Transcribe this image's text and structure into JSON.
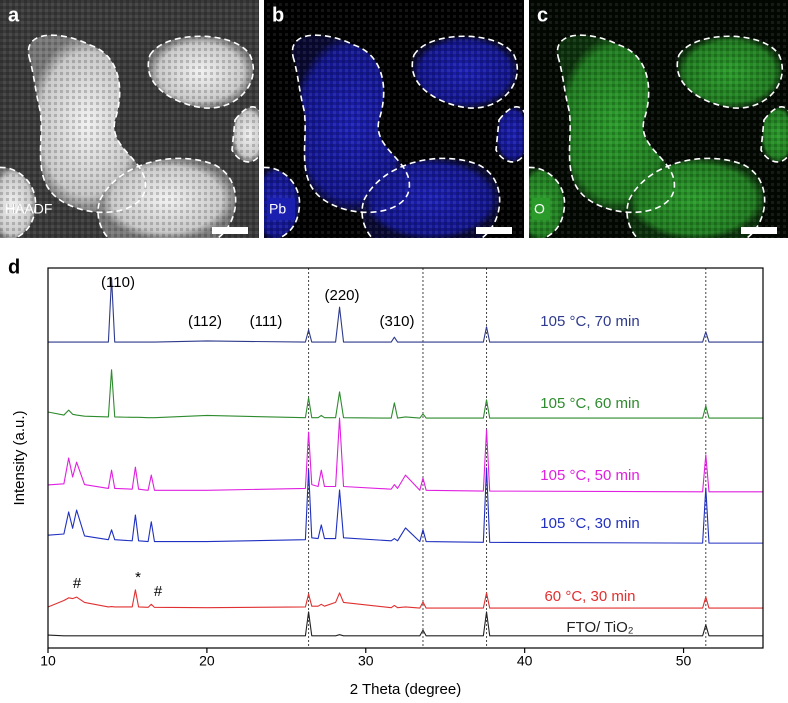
{
  "panels": [
    {
      "label": "a",
      "tag": "HAADF"
    },
    {
      "label": "b",
      "tag": "Pb"
    },
    {
      "label": "c",
      "tag": "O"
    }
  ],
  "chart_data": {
    "type": "line",
    "panel_label": "d",
    "x_label": "2 Theta (degree)",
    "y_label": "Intensity (a.u.)",
    "x": [
      10,
      11,
      11.3,
      11.55,
      11.8,
      12.3,
      13.8,
      14,
      14.2,
      15.3,
      15.5,
      15.7,
      16.3,
      16.5,
      16.7,
      20,
      26.2,
      26.4,
      26.6,
      27,
      27.2,
      27.4,
      28.1,
      28.35,
      28.6,
      31.6,
      31.8,
      32,
      32.5,
      33.4,
      33.6,
      33.8,
      37.4,
      37.6,
      37.8,
      51.2,
      51.4,
      51.6,
      55
    ],
    "xlim": [
      10,
      55
    ],
    "xticks": [
      10,
      20,
      30,
      40,
      50
    ],
    "ylim": [
      0,
      100
    ],
    "reference_lines": [
      26.4,
      33.6,
      37.6,
      51.4
    ],
    "annotations": [
      "(110)",
      "(112)",
      "(111)",
      "(220)",
      "(310)",
      "#",
      "*",
      "#"
    ],
    "series": [
      {
        "name": "105 °C, 70 min",
        "color": "#2e3a8c",
        "values": [
          80.5,
          80.5,
          80.5,
          80.5,
          80.5,
          80.5,
          80.5,
          97.4,
          80.5,
          80.5,
          80.5,
          80.5,
          80.5,
          80.5,
          80.5,
          80.8,
          80.5,
          83.7,
          80.5,
          80.5,
          80.5,
          80.5,
          80.5,
          89.7,
          80.5,
          80.5,
          81.8,
          80.5,
          80.5,
          80.5,
          80.5,
          80.5,
          80.5,
          84.5,
          80.5,
          80.5,
          83.2,
          80.5,
          80.5
        ]
      },
      {
        "name": "105 °C, 60 min",
        "color": "#2e8b2e",
        "values": [
          62.1,
          61.3,
          62.6,
          61.5,
          61.3,
          61.0,
          60.8,
          73.2,
          60.8,
          60.7,
          60.7,
          60.7,
          60.6,
          60.6,
          60.6,
          61.2,
          60.6,
          65.8,
          60.6,
          60.6,
          61.2,
          60.6,
          60.6,
          67.4,
          60.6,
          60.5,
          64.5,
          60.5,
          60.8,
          60.5,
          61.6,
          60.5,
          60.5,
          65.3,
          60.5,
          60.5,
          63.7,
          60.5,
          60.5
        ]
      },
      {
        "name": "105 °C, 50 min",
        "color": "#e020e0",
        "values": [
          42.9,
          43.2,
          50,
          45,
          48.9,
          43,
          42,
          46.8,
          42,
          41.8,
          47.6,
          41.8,
          41.5,
          45.5,
          41.5,
          41.5,
          42,
          56.8,
          43,
          42.5,
          46.8,
          42.5,
          42.5,
          60.5,
          42.5,
          41.8,
          43,
          42,
          45.5,
          41.5,
          44.7,
          41.5,
          41.3,
          57.4,
          41.3,
          41.1,
          50.8,
          41.1,
          41.1
        ]
      },
      {
        "name": "105 °C, 30 min",
        "color": "#2030c0",
        "values": [
          29.7,
          30,
          35.8,
          31.5,
          36.3,
          29.5,
          28.5,
          31.1,
          28.5,
          28.2,
          35,
          28.2,
          28,
          33.2,
          28,
          28,
          28.5,
          46.8,
          29,
          28.8,
          32.4,
          28.8,
          28.8,
          41.6,
          29,
          28.2,
          28.8,
          28.2,
          31.6,
          28,
          31.1,
          28,
          27.8,
          47.4,
          27.8,
          27.6,
          42.1,
          27.6,
          27.6
        ]
      },
      {
        "name": "60 °C, 30 min",
        "color": "#e03030",
        "values": [
          10.8,
          12.5,
          13.2,
          13.0,
          13.4,
          12,
          10.8,
          10.9,
          10.8,
          10.8,
          15.3,
          10.8,
          10.7,
          11.5,
          10.7,
          10.6,
          10.8,
          14.2,
          11,
          11,
          11.5,
          11,
          12,
          14.5,
          12,
          10.6,
          11.2,
          10.6,
          10.8,
          10.5,
          12.1,
          10.5,
          10.5,
          14.5,
          10.5,
          10.5,
          13.4,
          10.5,
          10.5
        ]
      },
      {
        "name": "FTO/ TiO₂",
        "color": "#222222",
        "values": [
          3.4,
          3.2,
          3.2,
          3.2,
          3.2,
          3.2,
          3.2,
          3.2,
          3.2,
          3.2,
          3.2,
          3.2,
          3.2,
          3.2,
          3.2,
          3.2,
          3.2,
          9.5,
          3.2,
          3.2,
          3.2,
          3.2,
          3.2,
          3.5,
          3.2,
          3.2,
          3.2,
          3.2,
          3.2,
          3.2,
          4.7,
          3.2,
          3.2,
          9.5,
          3.2,
          3.2,
          6.1,
          3.2,
          3.2
        ]
      }
    ]
  }
}
